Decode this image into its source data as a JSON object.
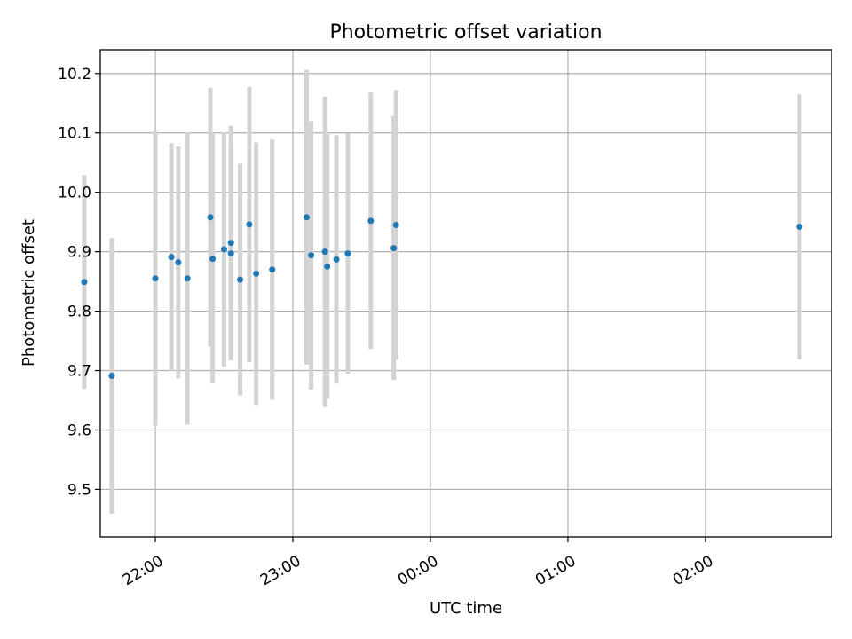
{
  "chart_data": {
    "type": "scatter",
    "title": "Photometric offset variation",
    "xlabel": "UTC time",
    "ylabel": "Photometric offset",
    "xlim": [
      "21:36",
      "02:55"
    ],
    "ylim": [
      9.42,
      10.24
    ],
    "grid": true,
    "xticks": [
      "22:00",
      "23:00",
      "00:00",
      "01:00",
      "02:00"
    ],
    "yticks": [
      "9.5",
      "9.6",
      "9.7",
      "9.8",
      "9.9",
      "10.0",
      "10.1",
      "10.2"
    ],
    "colors": {
      "point": "#1f77b4",
      "errorbar": "#d3d3d3",
      "grid": "#b0b0b0"
    },
    "points": [
      {
        "x": "21:29",
        "y": 9.849,
        "err": 0.18
      },
      {
        "x": "21:41",
        "y": 9.691,
        "err": 0.232
      },
      {
        "x": "22:00",
        "y": 9.855,
        "err": 0.248
      },
      {
        "x": "22:07",
        "y": 9.891,
        "err": 0.192
      },
      {
        "x": "22:10",
        "y": 9.882,
        "err": 0.195
      },
      {
        "x": "22:14",
        "y": 9.855,
        "err": 0.246
      },
      {
        "x": "22:24",
        "y": 9.958,
        "err": 0.218
      },
      {
        "x": "22:25",
        "y": 9.888,
        "err": 0.21
      },
      {
        "x": "22:30",
        "y": 9.904,
        "err": 0.197
      },
      {
        "x": "22:33",
        "y": 9.915,
        "err": 0.197
      },
      {
        "x": "22:33",
        "y": 9.897,
        "err": 0.18
      },
      {
        "x": "22:37",
        "y": 9.853,
        "err": 0.195
      },
      {
        "x": "22:41",
        "y": 9.946,
        "err": 0.232
      },
      {
        "x": "22:44",
        "y": 9.863,
        "err": 0.221
      },
      {
        "x": "22:51",
        "y": 9.87,
        "err": 0.219
      },
      {
        "x": "23:06",
        "y": 9.958,
        "err": 0.248
      },
      {
        "x": "23:08",
        "y": 9.894,
        "err": 0.226
      },
      {
        "x": "23:14",
        "y": 9.9,
        "err": 0.261
      },
      {
        "x": "23:15",
        "y": 9.875,
        "err": 0.223
      },
      {
        "x": "23:19",
        "y": 9.887,
        "err": 0.209
      },
      {
        "x": "23:24",
        "y": 9.897,
        "err": 0.202
      },
      {
        "x": "23:34",
        "y": 9.952,
        "err": 0.216
      },
      {
        "x": "23:44",
        "y": 9.906,
        "err": 0.222
      },
      {
        "x": "23:45",
        "y": 9.945,
        "err": 0.227
      },
      {
        "x": "02:41",
        "y": 9.942,
        "err": 0.223
      }
    ]
  }
}
